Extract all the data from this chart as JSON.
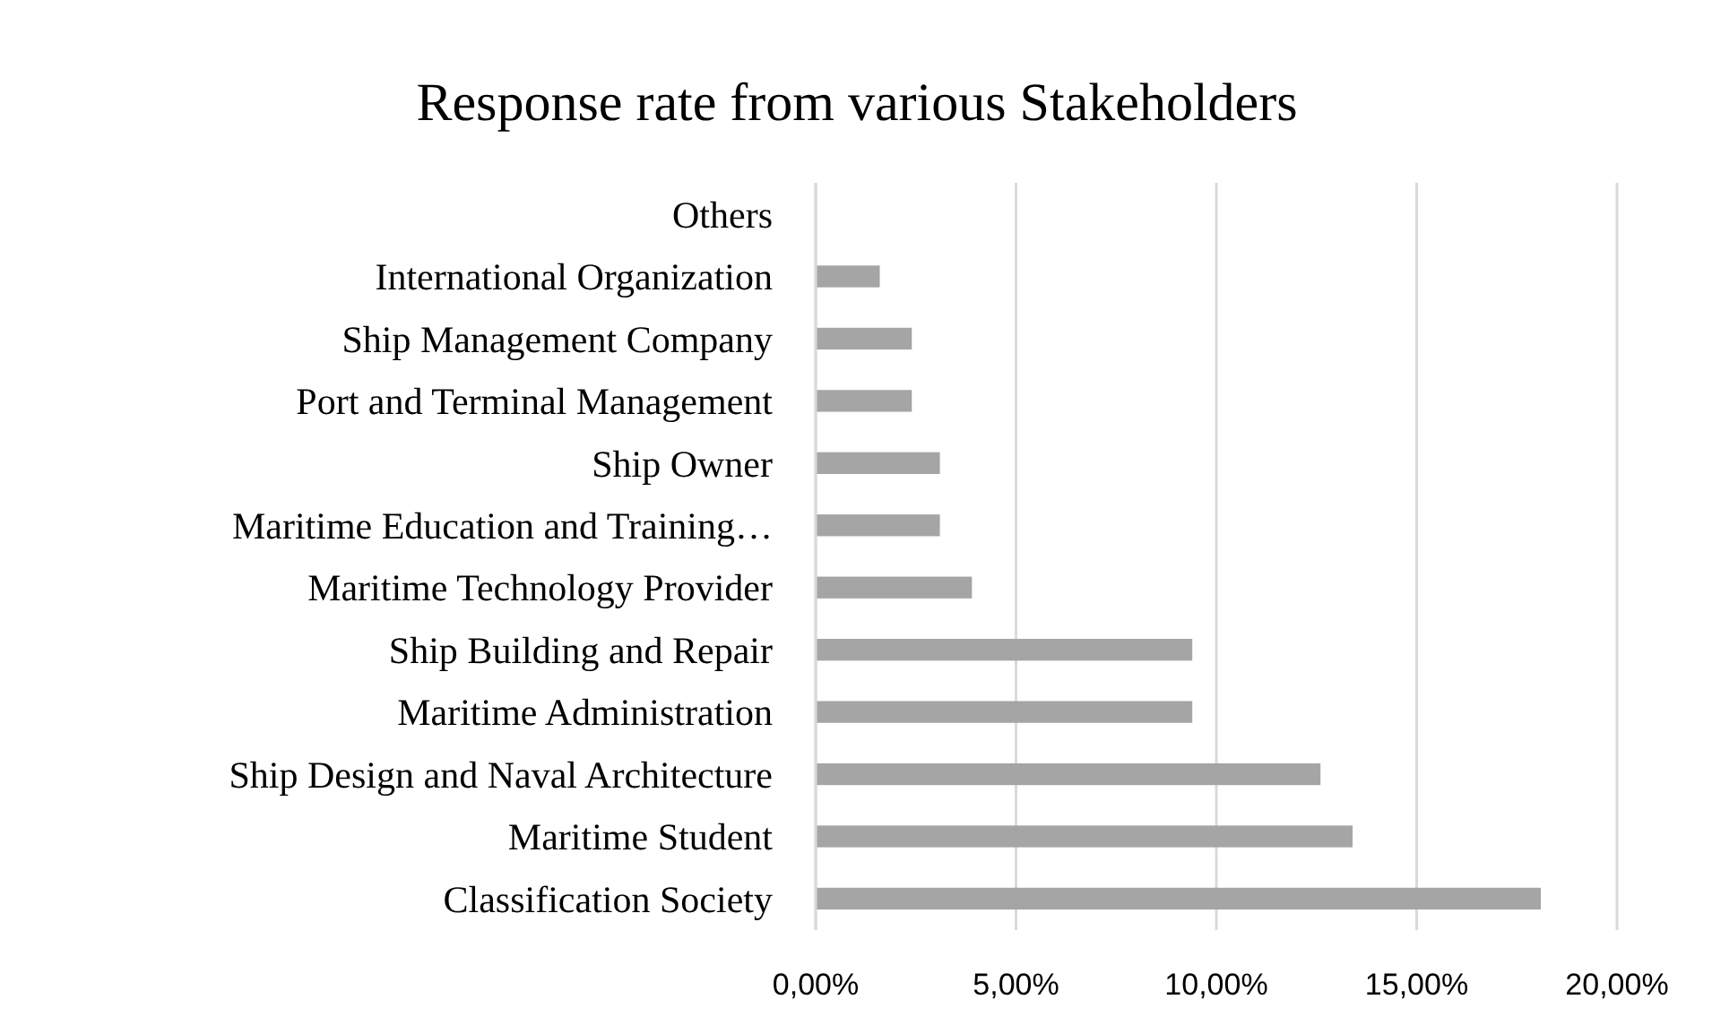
{
  "chart_data": {
    "type": "bar",
    "orientation": "horizontal",
    "title": "Response rate from various Stakeholders",
    "categories": [
      "Others",
      "International Organization",
      "Ship Management Company",
      "Port and Terminal Management",
      "Ship Owner",
      "Maritime Education and Training…",
      "Maritime Technology Provider",
      "Ship Building and Repair",
      "Maritime Administration",
      "Ship Design and Naval Architecture",
      "Maritime Student",
      "Classification Society"
    ],
    "values": [
      0,
      1.6,
      2.4,
      2.4,
      3.1,
      3.1,
      3.9,
      9.4,
      9.4,
      12.6,
      13.4,
      18.1
    ],
    "color": "#a5a5a5",
    "xlim": [
      0,
      20
    ],
    "xticks": [
      {
        "value": 0,
        "label": "0,00%"
      },
      {
        "value": 5,
        "label": "5,00%"
      },
      {
        "value": 10,
        "label": "10,00%"
      },
      {
        "value": 15,
        "label": "15,00%"
      },
      {
        "value": 20,
        "label": "20,00%"
      }
    ],
    "grid": "x"
  }
}
